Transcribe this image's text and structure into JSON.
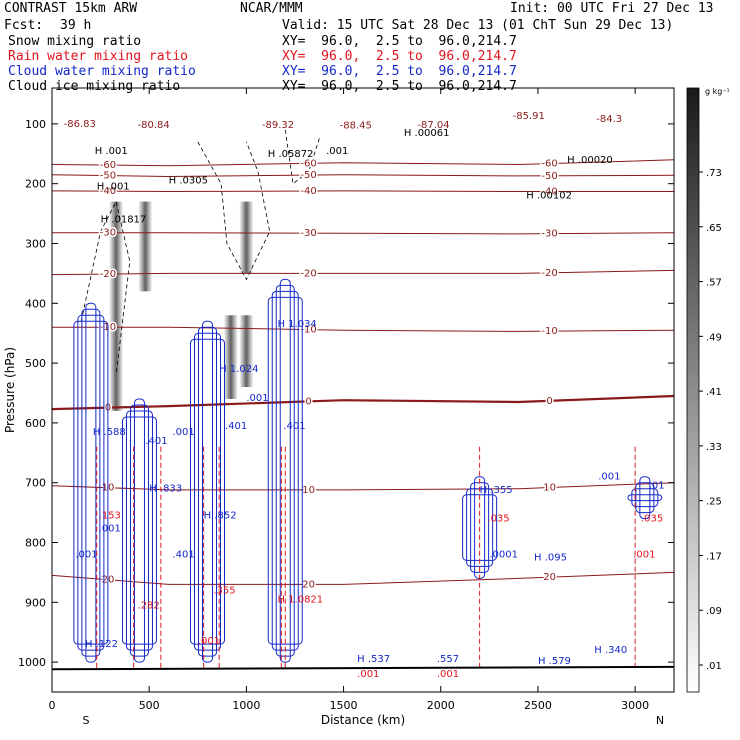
{
  "header": {
    "model": "CONTRAST 15km ARW",
    "org": "NCAR/MMM",
    "init": "Init: 00 UTC Fri 27 Dec 13",
    "fcst_label": "Fcst:",
    "fcst_value": "39 h",
    "valid": "Valid: 15 UTC Sat 28 Dec 13 (01 ChT Sun 29 Dec 13)"
  },
  "fields": [
    {
      "name": "Snow mixing ratio",
      "xy": "XY=  96.0,  2.5 to  96.0,214.7",
      "color": "#000000"
    },
    {
      "name": "Rain water mixing ratio",
      "xy": "XY=  96.0,  2.5 to  96.0,214.7",
      "color": "#e0141e"
    },
    {
      "name": "Cloud water mixing ratio",
      "xy": "XY=  96.0,  2.5 to  96.0,214.7",
      "color": "#1428c8"
    },
    {
      "name": "Cloud ice mixing ratio",
      "xy": "XY=  96.0,  2.5 to  96.0,214.7",
      "color": "#000000"
    }
  ],
  "colors": {
    "temperature": "#8b1a1a",
    "snow": "#000000",
    "rain": "#e0141e",
    "cloud_water": "#1428c8",
    "cloud_ice_shade": "#444444"
  },
  "colorbar": {
    "unit": "g kg⁻¹",
    "levels": [
      ".01",
      ".09",
      ".17",
      ".25",
      ".33",
      ".41",
      ".49",
      ".57",
      ".65",
      ".73"
    ]
  },
  "chart_data": {
    "type": "contour",
    "xlabel": "Distance (km)",
    "ylabel": "Pressure (hPa)",
    "xlim": [
      0,
      3200
    ],
    "ylim": [
      1050,
      40
    ],
    "xticks": [
      0,
      500,
      1000,
      1500,
      2000,
      2500,
      3000
    ],
    "yticks": [
      100,
      200,
      300,
      400,
      500,
      600,
      700,
      800,
      900,
      1000
    ],
    "x_end_labels": [
      "S",
      "N"
    ],
    "temperature_contours": [
      {
        "label": "-60",
        "points": [
          [
            0,
            168
          ],
          [
            600,
            170
          ],
          [
            1500,
            165
          ],
          [
            2400,
            168
          ],
          [
            3200,
            160
          ]
        ]
      },
      {
        "label": "-50",
        "points": [
          [
            0,
            185
          ],
          [
            600,
            188
          ],
          [
            1500,
            185
          ],
          [
            2400,
            187
          ],
          [
            3200,
            186
          ]
        ]
      },
      {
        "label": "-40",
        "points": [
          [
            0,
            212
          ],
          [
            600,
            213
          ],
          [
            1500,
            212
          ],
          [
            2400,
            213
          ],
          [
            3200,
            213
          ]
        ]
      },
      {
        "label": "-30",
        "points": [
          [
            0,
            282
          ],
          [
            600,
            282
          ],
          [
            1500,
            283
          ],
          [
            2400,
            284
          ],
          [
            3200,
            282
          ]
        ]
      },
      {
        "label": "-20",
        "points": [
          [
            0,
            352
          ],
          [
            600,
            350
          ],
          [
            1500,
            350
          ],
          [
            2400,
            350
          ],
          [
            3200,
            345
          ]
        ]
      },
      {
        "label": "-10",
        "points": [
          [
            0,
            440
          ],
          [
            600,
            440
          ],
          [
            1500,
            445
          ],
          [
            2400,
            447
          ],
          [
            3200,
            445
          ]
        ]
      },
      {
        "label": "0",
        "points": [
          [
            0,
            577
          ],
          [
            600,
            572
          ],
          [
            1500,
            562
          ],
          [
            2400,
            565
          ],
          [
            3200,
            555
          ]
        ]
      },
      {
        "label": "10",
        "points": [
          [
            0,
            705
          ],
          [
            600,
            712
          ],
          [
            1500,
            712
          ],
          [
            2400,
            710
          ],
          [
            3200,
            700
          ]
        ]
      },
      {
        "label": "20",
        "points": [
          [
            0,
            855
          ],
          [
            600,
            870
          ],
          [
            1500,
            870
          ],
          [
            2400,
            860
          ],
          [
            3200,
            850
          ]
        ]
      }
    ],
    "temperature_minima": [
      {
        "label": "-86.83",
        "x": 60,
        "p": 105
      },
      {
        "label": "-80.84",
        "x": 440,
        "p": 107
      },
      {
        "label": "-89.32",
        "x": 1080,
        "p": 107
      },
      {
        "label": "-88.45",
        "x": 1480,
        "p": 108
      },
      {
        "label": "-87.04",
        "x": 1880,
        "p": 107
      },
      {
        "label": "-85.91",
        "x": 2370,
        "p": 92
      },
      {
        "label": "-84.3",
        "x": 2800,
        "p": 97
      }
    ],
    "value_labels": [
      {
        "label": "H .00061",
        "x": 1810,
        "p": 120,
        "color": "#000000"
      },
      {
        "label": "H .00020",
        "x": 2650,
        "p": 165,
        "color": "#000000"
      },
      {
        "label": "H .05872",
        "x": 1110,
        "p": 155,
        "color": "#000000"
      },
      {
        "label": "H .001",
        "x": 220,
        "p": 150,
        "color": "#000000"
      },
      {
        "label": ".001",
        "x": 1410,
        "p": 150,
        "color": "#000000"
      },
      {
        "label": "H .0305",
        "x": 600,
        "p": 200,
        "color": "#000000"
      },
      {
        "label": "H .001",
        "x": 230,
        "p": 210,
        "color": "#000000"
      },
      {
        "label": "H .00102",
        "x": 2440,
        "p": 225,
        "color": "#000000"
      },
      {
        "label": "H .01817",
        "x": 250,
        "p": 265,
        "color": "#000000"
      },
      {
        "label": "H 1.024",
        "x": 860,
        "p": 515,
        "color": "#1428c8"
      },
      {
        "label": "H 1.034",
        "x": 1160,
        "p": 440,
        "color": "#1428c8"
      },
      {
        "label": "H .588",
        "x": 210,
        "p": 620,
        "color": "#1428c8"
      },
      {
        "label": ".001",
        "x": 1000,
        "p": 563,
        "color": "#1428c8"
      },
      {
        "label": ".401",
        "x": 890,
        "p": 610,
        "color": "#1428c8"
      },
      {
        "label": ".401",
        "x": 1190,
        "p": 610,
        "color": "#1428c8"
      },
      {
        "label": ".401",
        "x": 480,
        "p": 635,
        "color": "#1428c8"
      },
      {
        "label": ".001",
        "x": 620,
        "p": 620,
        "color": "#1428c8"
      },
      {
        "label": "H .833",
        "x": 500,
        "p": 715,
        "color": "#1428c8"
      },
      {
        "label": "H .852",
        "x": 780,
        "p": 760,
        "color": "#1428c8"
      },
      {
        "label": "H .355",
        "x": 2200,
        "p": 717,
        "color": "#1428c8"
      },
      {
        "label": ".001",
        "x": 2810,
        "p": 695,
        "color": "#1428c8"
      },
      {
        "label": ".01",
        "x": 3070,
        "p": 710,
        "color": "#1428c8"
      },
      {
        "label": ".001",
        "x": 240,
        "p": 782,
        "color": "#1428c8"
      },
      {
        "label": ".001",
        "x": 120,
        "p": 825,
        "color": "#1428c8"
      },
      {
        "label": ".401",
        "x": 620,
        "p": 825,
        "color": "#1428c8"
      },
      {
        "label": ".0001",
        "x": 2250,
        "p": 825,
        "color": "#1428c8"
      },
      {
        "label": "H .095",
        "x": 2480,
        "p": 830,
        "color": "#1428c8"
      },
      {
        "label": "H .122",
        "x": 170,
        "p": 975,
        "color": "#1428c8"
      },
      {
        "label": "H .537",
        "x": 1570,
        "p": 1000,
        "color": "#1428c8"
      },
      {
        "label": ".557",
        "x": 1980,
        "p": 1000,
        "color": "#1428c8"
      },
      {
        "label": "H .579",
        "x": 2500,
        "p": 1003,
        "color": "#1428c8"
      },
      {
        "label": "H .340",
        "x": 2790,
        "p": 985,
        "color": "#1428c8"
      },
      {
        "label": ".153",
        "x": 240,
        "p": 760,
        "color": "#e0141e"
      },
      {
        "label": ".035",
        "x": 2240,
        "p": 765,
        "color": "#e0141e"
      },
      {
        "label": ".035",
        "x": 3030,
        "p": 765,
        "color": "#e0141e"
      },
      {
        "label": ".001",
        "x": 2990,
        "p": 825,
        "color": "#e0141e"
      },
      {
        "label": ".282",
        "x": 440,
        "p": 910,
        "color": "#e0141e"
      },
      {
        "label": ".355",
        "x": 830,
        "p": 885,
        "color": "#e0141e"
      },
      {
        "label": ".001",
        "x": 750,
        "p": 970,
        "color": "#e0141e"
      },
      {
        "label": "H 1.0821",
        "x": 1160,
        "p": 900,
        "color": "#e0141e"
      },
      {
        "label": ".001",
        "x": 1570,
        "p": 1025,
        "color": "#e0141e"
      },
      {
        "label": ".001",
        "x": 1980,
        "p": 1025,
        "color": "#e0141e"
      }
    ]
  }
}
